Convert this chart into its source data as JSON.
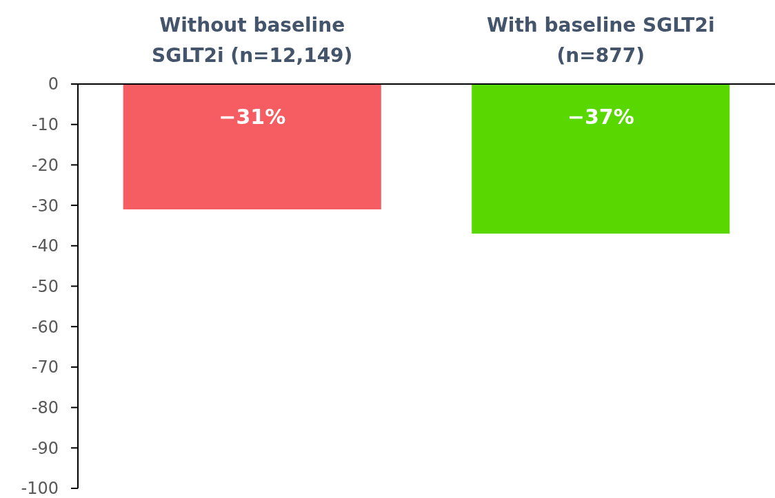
{
  "chart_data": {
    "type": "bar",
    "categories": [
      "Without baseline SGLT2i (n=12,149)",
      "With baseline SGLT2i (n=877)"
    ],
    "values": [
      -31,
      -37
    ],
    "colors": [
      "#f55d62",
      "#58d800"
    ],
    "value_labels": [
      "−31%",
      "−37%"
    ],
    "ylim": [
      -100,
      0
    ],
    "yticks": [
      0,
      -10,
      -20,
      -30,
      -40,
      -50,
      -60,
      -70,
      -80,
      -90,
      -100
    ],
    "grid": false
  }
}
